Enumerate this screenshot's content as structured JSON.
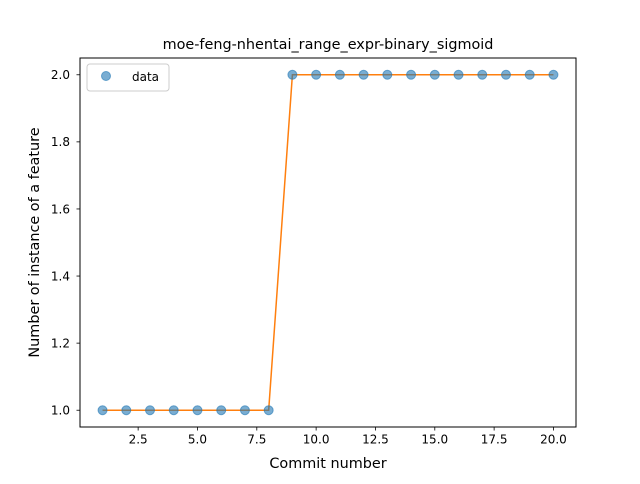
{
  "chart_data": {
    "type": "line",
    "title": "moe-feng-nhentai_range_expr-binary_sigmoid",
    "xlabel": "Commit number",
    "ylabel": "Number of instance of a feature",
    "xlim": [
      0.05,
      20.95
    ],
    "ylim": [
      0.95,
      2.05
    ],
    "x_ticks": [
      2.5,
      5.0,
      7.5,
      10.0,
      12.5,
      15.0,
      17.5,
      20.0
    ],
    "x_tick_labels": [
      "2.5",
      "5.0",
      "7.5",
      "10.0",
      "12.5",
      "15.0",
      "17.5",
      "20.0"
    ],
    "y_ticks": [
      1.0,
      1.2,
      1.4,
      1.6,
      1.8,
      2.0
    ],
    "y_tick_labels": [
      "1.0",
      "1.2",
      "1.4",
      "1.6",
      "1.8",
      "2.0"
    ],
    "grid": false,
    "legend_position": "top-left",
    "legend": [
      {
        "label": "data",
        "marker": "circle"
      }
    ],
    "series": [
      {
        "name": "data",
        "style": "scatter",
        "color": "#1f77b4",
        "x": [
          1,
          2,
          3,
          4,
          5,
          6,
          7,
          8,
          9,
          10,
          11,
          12,
          13,
          14,
          15,
          16,
          17,
          18,
          19,
          20
        ],
        "y": [
          1,
          1,
          1,
          1,
          1,
          1,
          1,
          1,
          2,
          2,
          2,
          2,
          2,
          2,
          2,
          2,
          2,
          2,
          2,
          2
        ]
      },
      {
        "style": "line",
        "color": "#ff7f0e",
        "x": [
          1,
          2,
          3,
          4,
          5,
          6,
          7,
          8,
          9,
          10,
          11,
          12,
          13,
          14,
          15,
          16,
          17,
          18,
          19,
          20
        ],
        "y": [
          1,
          1,
          1,
          1,
          1,
          1,
          1,
          1,
          2,
          2,
          2,
          2,
          2,
          2,
          2,
          2,
          2,
          2,
          2,
          2
        ]
      }
    ]
  }
}
